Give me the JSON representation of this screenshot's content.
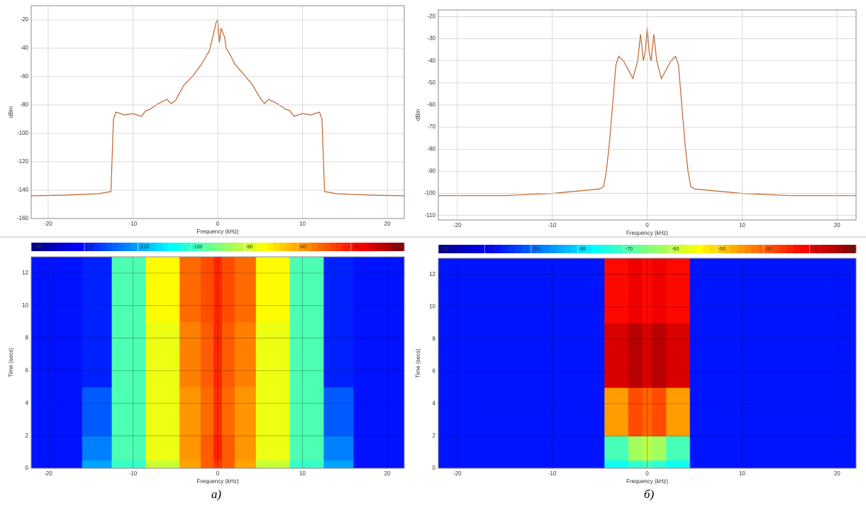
{
  "chart_data": [
    {
      "type": "line",
      "xlabel": "Frequency (kHz)",
      "ylabel": "dBm",
      "xlim": [
        -22,
        22
      ],
      "xticks": [
        -20,
        -10,
        0,
        10,
        20
      ],
      "ylim": [
        -160,
        -10
      ],
      "yticks": [
        -160,
        -140,
        -120,
        -100,
        -80,
        -60,
        -40,
        -20
      ],
      "grid": true,
      "series": [
        {
          "color": "#c0622a",
          "x": [
            -22,
            -18,
            -14,
            -12.6,
            -12.3,
            -12,
            -11,
            -10,
            -9,
            -8.5,
            -8,
            -7,
            -6,
            -5.5,
            -5,
            -4,
            -3,
            -2,
            -1.5,
            -1,
            -0.5,
            -0.2,
            0,
            0.2,
            0.4,
            0.8,
            1,
            1.5,
            2,
            3,
            4,
            5,
            5.5,
            6,
            7,
            8,
            8.5,
            9,
            10,
            11,
            12,
            12.3,
            12.6,
            14,
            18,
            22
          ],
          "values": [
            -144,
            -143.5,
            -142.5,
            -141,
            -90,
            -85,
            -87,
            -86,
            -88,
            -84,
            -83,
            -79,
            -76,
            -79,
            -77,
            -66,
            -60,
            -52,
            -47,
            -42,
            -30,
            -22,
            -20,
            -36,
            -26,
            -32,
            -40,
            -45,
            -51,
            -58,
            -65,
            -75,
            -79,
            -76,
            -79,
            -83,
            -84,
            -88,
            -86,
            -87,
            -85,
            -90,
            -141,
            -142.5,
            -143.5,
            -144
          ]
        }
      ]
    },
    {
      "type": "heatmap",
      "xlabel": "Frequency (kHz)",
      "ylabel": "Time (secs)",
      "xlim": [
        -22,
        22
      ],
      "xticks": [
        -20,
        -10,
        0,
        10,
        20
      ],
      "ylim": [
        0,
        13
      ],
      "yticks": [
        0,
        2,
        4,
        6,
        8,
        10,
        12
      ],
      "grid": true,
      "colormap": "jet",
      "xbins": [
        -22,
        -16,
        -12.5,
        -8.5,
        -4.5,
        -2,
        -0.5,
        0.5,
        2,
        4.5,
        8.5,
        12.5,
        16,
        22
      ],
      "ybins": [
        0,
        0.5,
        2,
        5,
        9,
        13
      ],
      "values": [
        [
          -140,
          -120,
          -100,
          -80,
          -60,
          -50,
          -45,
          -50,
          -60,
          -80,
          -100,
          -120,
          -140
        ],
        [
          -140,
          -125,
          -97,
          -75,
          -58,
          -50,
          -42,
          -50,
          -58,
          -75,
          -97,
          -125,
          -140
        ],
        [
          -140,
          -130,
          -97,
          -75,
          -58,
          -52,
          -44,
          -52,
          -58,
          -75,
          -97,
          -130,
          -140
        ],
        [
          -140,
          -138,
          -97,
          -75,
          -55,
          -50,
          -43,
          -50,
          -55,
          -75,
          -97,
          -138,
          -140
        ],
        [
          -140,
          -138,
          -97,
          -72,
          -52,
          -48,
          -43,
          -48,
          -52,
          -72,
          -97,
          -138,
          -140
        ]
      ],
      "colorbar": {
        "lim": [
          -160,
          -20
        ],
        "ticks": [
          -160,
          -140,
          -120,
          -100,
          -80,
          -60,
          -40,
          {
            "value": -20,
            "label": "dBm"
          }
        ]
      },
      "caption": "а)"
    },
    {
      "type": "line",
      "xlabel": "Frequency (kHz)",
      "ylabel": "dBm",
      "xlim": [
        -22,
        22
      ],
      "xticks": [
        -20,
        -10,
        0,
        10,
        20
      ],
      "ylim": [
        -112,
        -17
      ],
      "yticks": [
        -110,
        -100,
        -90,
        -80,
        -70,
        -60,
        -50,
        -40,
        -30,
        -20
      ],
      "grid": true,
      "series": [
        {
          "color": "#c0622a",
          "x": [
            -22,
            -15,
            -10,
            -5,
            -4.6,
            -4.3,
            -4,
            -3.6,
            -3.3,
            -3,
            -2.5,
            -2,
            -1.5,
            -1,
            -0.7,
            -0.4,
            -0.2,
            0,
            0.2,
            0.4,
            0.7,
            1,
            1.5,
            2,
            2.5,
            3,
            3.3,
            3.6,
            4,
            4.3,
            4.6,
            5,
            10,
            15,
            22
          ],
          "values": [
            -101,
            -101,
            -100,
            -98,
            -97,
            -90,
            -78,
            -58,
            -42,
            -38,
            -40,
            -44,
            -48,
            -40,
            -28,
            -40,
            -36,
            -25,
            -36,
            -40,
            -28,
            -40,
            -48,
            -44,
            -40,
            -38,
            -42,
            -58,
            -78,
            -90,
            -97,
            -98,
            -100,
            -101,
            -101
          ]
        }
      ]
    },
    {
      "type": "heatmap",
      "xlabel": "Frequency (kHz)",
      "ylabel": "Time (secs)",
      "xlim": [
        -22,
        22
      ],
      "xticks": [
        -20,
        -10,
        0,
        10,
        20
      ],
      "ylim": [
        0,
        13
      ],
      "yticks": [
        0,
        2,
        4,
        6,
        8,
        10,
        12
      ],
      "grid": true,
      "colormap": "jet",
      "xbins": [
        -22,
        -16,
        -12.5,
        -8.5,
        -4.5,
        -2,
        -0.5,
        0.5,
        2,
        4.5,
        8.5,
        12.5,
        16,
        22
      ],
      "ybins": [
        0,
        0.5,
        2,
        5,
        9,
        13
      ],
      "values": [
        [
          -97,
          -97,
          -97,
          -97,
          -75,
          -72,
          -70,
          -72,
          -75,
          -97,
          -97,
          -97,
          -97
        ],
        [
          -97,
          -97,
          -97,
          -97,
          -70,
          -62,
          -60,
          -62,
          -70,
          -97,
          -97,
          -97,
          -97
        ],
        [
          -97,
          -97,
          -97,
          -97,
          -45,
          -38,
          -40,
          -38,
          -45,
          -97,
          -97,
          -97,
          -97
        ],
        [
          -97,
          -97,
          -97,
          -97,
          -28,
          -25,
          -28,
          -25,
          -28,
          -97,
          -97,
          -97,
          -97
        ],
        [
          -97,
          -97,
          -97,
          -97,
          -32,
          -30,
          -32,
          -30,
          -32,
          -97,
          -97,
          -97,
          -97
        ]
      ],
      "colorbar": {
        "lim": [
          -110,
          -20
        ],
        "ticks": [
          -110,
          -100,
          -90,
          -80,
          -70,
          -60,
          -50,
          -40,
          -30,
          {
            "value": -20,
            "label": "dBm"
          }
        ]
      },
      "caption": "б)"
    }
  ]
}
